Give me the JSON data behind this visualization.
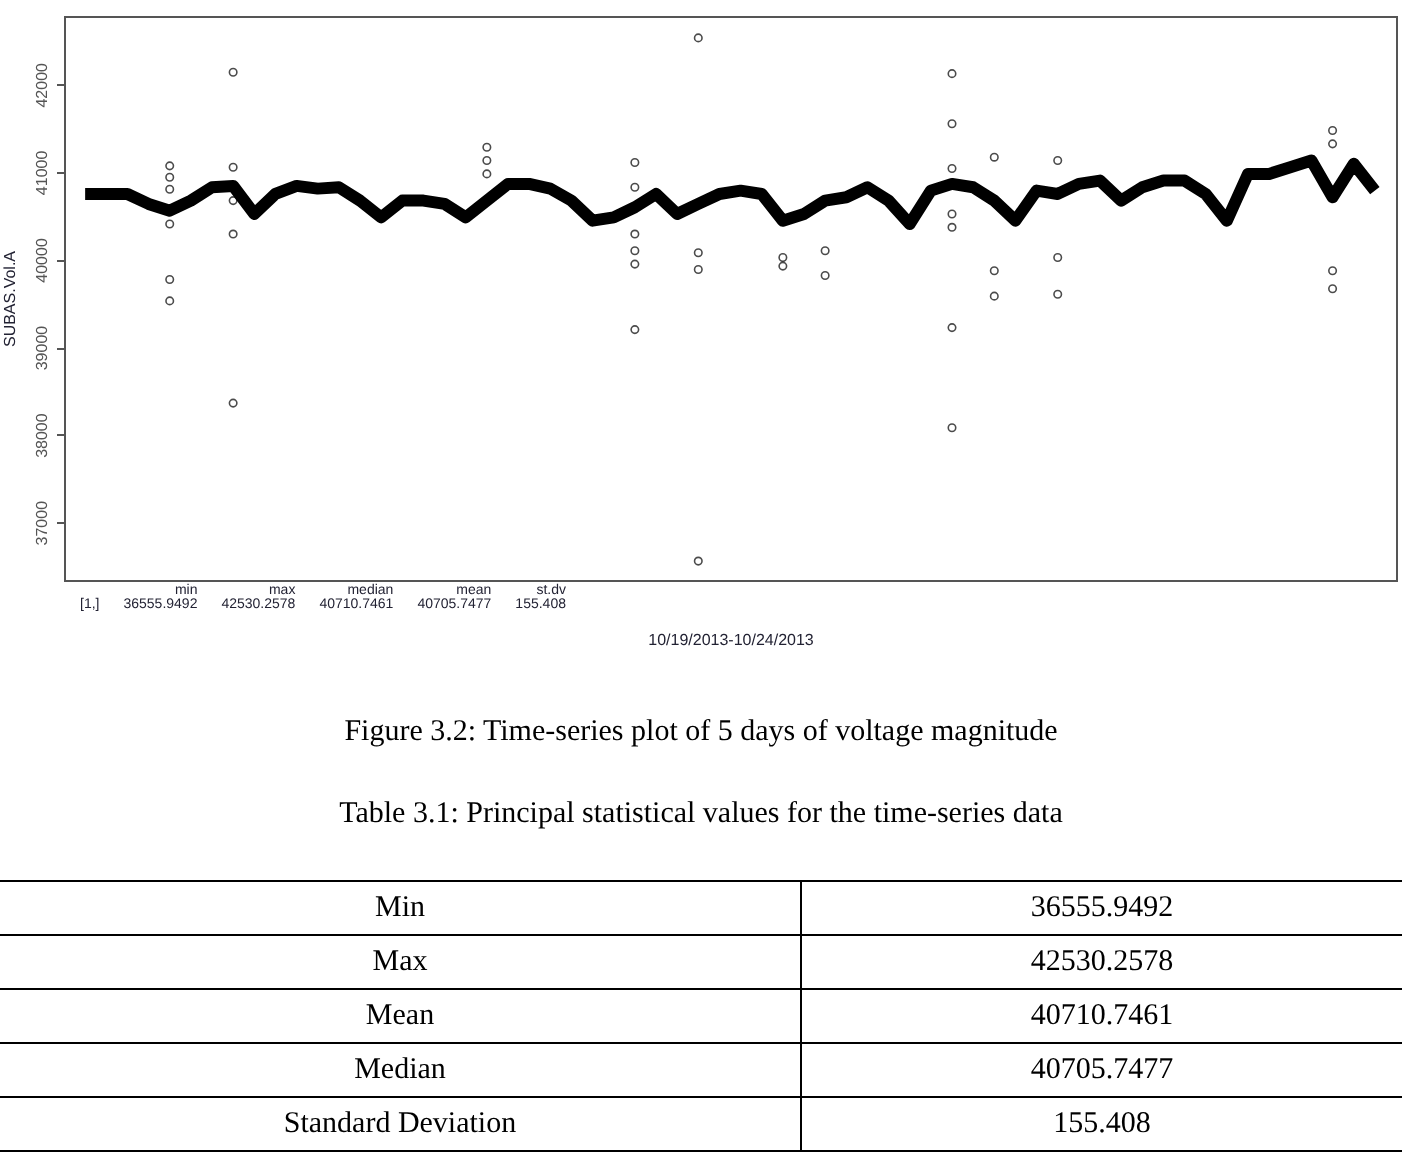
{
  "chart_data": {
    "type": "line",
    "xlabel": "10/19/2013-10/24/2013",
    "ylabel": "SUBAS.Vol.A",
    "categories": [
      null,
      null,
      null,
      null,
      null,
      null,
      null,
      null,
      null,
      null,
      null,
      null,
      null,
      null,
      null,
      null,
      null,
      null,
      null,
      null,
      null,
      null,
      null,
      null,
      null,
      null,
      null,
      null,
      null,
      null,
      null,
      null,
      null,
      null,
      null,
      null,
      null,
      null,
      null,
      null,
      null,
      null,
      null,
      null,
      null,
      null,
      null,
      null,
      null,
      null,
      null,
      null,
      null,
      null,
      null,
      null,
      null,
      null,
      null,
      null,
      null,
      null
    ],
    "ylim": [
      36340,
      42780
    ],
    "yticks": [
      37000,
      38000,
      39000,
      40000,
      41000,
      42000
    ],
    "grid": false,
    "series": [
      {
        "color": "#000000",
        "values": [
          40748,
          40748,
          40748,
          40634,
          40557,
          40672,
          40825,
          40840,
          40519,
          40748,
          40840,
          40809,
          40825,
          40672,
          40481,
          40672,
          40672,
          40634,
          40481,
          40672,
          40863,
          40863,
          40809,
          40672,
          40443,
          40481,
          40596,
          40748,
          40519,
          40634,
          40748,
          40786,
          40748,
          40443,
          40519,
          40672,
          40710,
          40825,
          40672,
          40405,
          40786,
          40863,
          40825,
          40672,
          40443,
          40786,
          40748,
          40863,
          40901,
          40672,
          40825,
          40901,
          40901,
          40748,
          40443,
          40977,
          40977,
          41053,
          41130,
          40710,
          41092,
          40786
        ]
      },
      {
        "type": "scatter",
        "marker": "circle",
        "color": "#000000",
        "values": [
          null,
          null,
          null,
          null,
          41069,
          null,
          null,
          42137,
          null,
          null,
          null,
          null,
          null,
          null,
          null,
          null,
          null,
          null,
          null,
          41282,
          null,
          null,
          null,
          null,
          null,
          null,
          41107,
          null,
          null,
          42530,
          null,
          null,
          null,
          40023,
          null,
          40100,
          null,
          null,
          null,
          null,
          null,
          42122,
          null,
          41168,
          null,
          null,
          41130,
          null,
          null,
          null,
          null,
          null,
          null,
          null,
          null,
          null,
          null,
          null,
          null,
          41473,
          null,
          null
        ]
      },
      {
        "type": "scatter",
        "marker": "circle",
        "color": "#000000",
        "values": [
          null,
          null,
          null,
          null,
          40939,
          null,
          null,
          41053,
          null,
          null,
          null,
          null,
          null,
          null,
          null,
          null,
          null,
          null,
          null,
          41130,
          null,
          null,
          null,
          null,
          null,
          null,
          40825,
          null,
          null,
          40077,
          null,
          null,
          null,
          39924,
          null,
          39817,
          null,
          null,
          null,
          null,
          null,
          41549,
          null,
          39871,
          null,
          null,
          40023,
          null,
          null,
          null,
          null,
          null,
          null,
          null,
          null,
          null,
          null,
          null,
          null,
          41320,
          null,
          null
        ]
      },
      {
        "type": "scatter",
        "marker": "circle",
        "color": "#000000",
        "values": [
          null,
          null,
          null,
          null,
          40802,
          null,
          null,
          null,
          null,
          null,
          null,
          null,
          null,
          null,
          null,
          null,
          null,
          null,
          null,
          40977,
          null,
          null,
          null,
          null,
          null,
          null,
          40290,
          null,
          null,
          39886,
          null,
          null,
          null,
          null,
          null,
          null,
          null,
          null,
          null,
          null,
          null,
          41038,
          null,
          39581,
          null,
          null,
          39603,
          null,
          null,
          null,
          null,
          null,
          null,
          null,
          null,
          null,
          null,
          null,
          null,
          39871,
          null,
          null
        ]
      },
      {
        "type": "scatter",
        "marker": "circle",
        "color": "#000000",
        "values": [
          null,
          null,
          null,
          null,
          40405,
          null,
          null,
          40672,
          null,
          null,
          null,
          null,
          null,
          null,
          null,
          null,
          null,
          null,
          null,
          null,
          null,
          null,
          null,
          null,
          null,
          null,
          40100,
          null,
          null,
          36556,
          null,
          null,
          null,
          null,
          null,
          null,
          null,
          null,
          null,
          null,
          null,
          40519,
          null,
          null,
          null,
          null,
          null,
          null,
          null,
          null,
          null,
          null,
          null,
          null,
          null,
          null,
          null,
          null,
          null,
          39665,
          null,
          null
        ]
      },
      {
        "type": "scatter",
        "marker": "circle",
        "color": "#000000",
        "values": [
          null,
          null,
          null,
          null,
          39771,
          null,
          null,
          40290,
          null,
          null,
          null,
          null,
          null,
          null,
          null,
          null,
          null,
          null,
          null,
          null,
          null,
          null,
          null,
          null,
          null,
          null,
          39947,
          null,
          null,
          null,
          null,
          null,
          null,
          null,
          null,
          null,
          null,
          null,
          null,
          null,
          null,
          40367,
          null,
          null,
          null,
          null,
          null,
          null,
          null,
          null,
          null,
          null,
          null,
          null,
          null,
          null,
          null,
          null,
          null,
          null,
          null,
          null
        ]
      },
      {
        "type": "scatter",
        "marker": "circle",
        "color": "#000000",
        "values": [
          null,
          null,
          null,
          null,
          39527,
          null,
          null,
          38360,
          null,
          null,
          null,
          null,
          null,
          null,
          null,
          null,
          null,
          null,
          null,
          null,
          null,
          null,
          null,
          null,
          null,
          null,
          39199,
          null,
          null,
          null,
          null,
          null,
          null,
          null,
          null,
          null,
          null,
          null,
          null,
          null,
          null,
          39222,
          null,
          null,
          null,
          null,
          null,
          null,
          null,
          null,
          null,
          null,
          null,
          null,
          null,
          null,
          null,
          null,
          null,
          null,
          null,
          null
        ]
      },
      {
        "type": "scatter",
        "marker": "circle",
        "color": "#000000",
        "values": [
          null,
          null,
          null,
          null,
          null,
          null,
          null,
          null,
          null,
          null,
          null,
          null,
          null,
          null,
          null,
          null,
          null,
          null,
          null,
          null,
          null,
          null,
          null,
          null,
          null,
          null,
          null,
          null,
          null,
          null,
          null,
          null,
          null,
          null,
          null,
          null,
          null,
          null,
          null,
          null,
          null,
          38078,
          null,
          null,
          null,
          null,
          null,
          null,
          null,
          null,
          null,
          null,
          null,
          null,
          null,
          null,
          null,
          null,
          null,
          null,
          null,
          null
        ]
      }
    ],
    "annotations": [
      "[1,]",
      "min",
      "max",
      "median",
      "mean",
      "st.dv",
      "36555.9492",
      "42530.2578",
      "40710.7461",
      "40705.7477",
      "155.408",
      "Figure 3.2: Time-series plot of 5 days of voltage magnitude",
      "Table 3.1: Principal statistical values for the time-series data",
      "Min",
      "36555.9492",
      "Max",
      "42530.2578",
      "Mean",
      "40710.7461",
      "Median",
      "40705.7477",
      "Standard Deviation",
      "155.408"
    ]
  }
}
